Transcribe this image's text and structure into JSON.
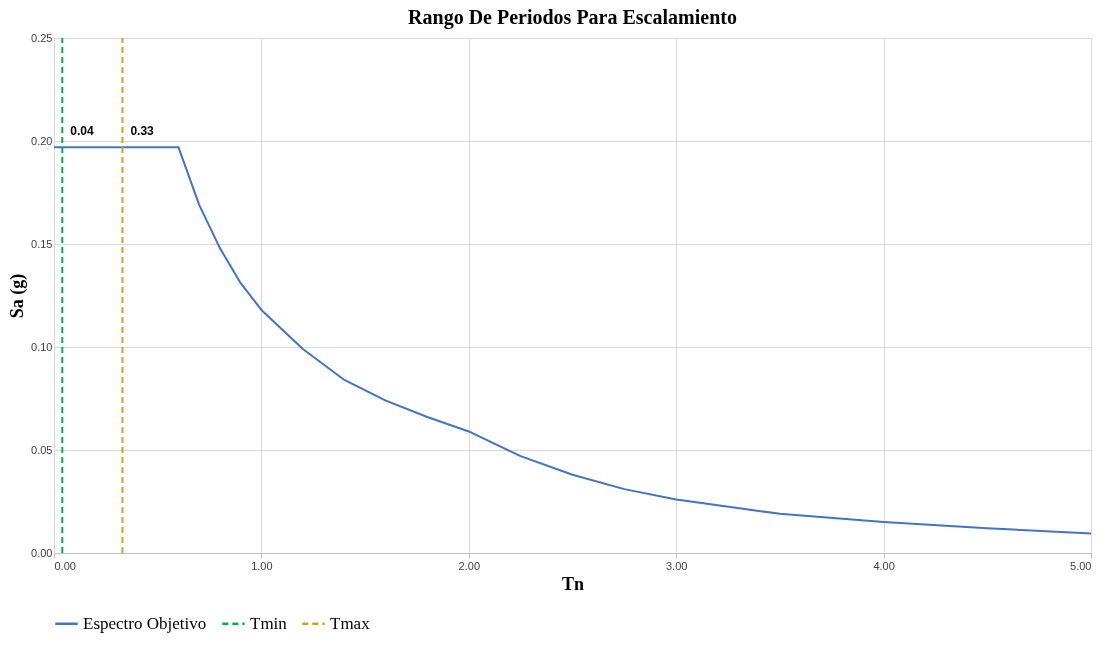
{
  "chart_data": {
    "type": "line",
    "title": "Rango De Periodos Para Escalamiento",
    "xlabel": "Tn",
    "ylabel": "Sa (g)",
    "xlim": [
      0,
      5
    ],
    "ylim": [
      0,
      0.25
    ],
    "xticks": [
      {
        "value": 0,
        "label": "0.00"
      },
      {
        "value": 1,
        "label": "1.00"
      },
      {
        "value": 2,
        "label": "2.00"
      },
      {
        "value": 3,
        "label": "3.00"
      },
      {
        "value": 4,
        "label": "4.00"
      },
      {
        "value": 5,
        "label": "5.00"
      }
    ],
    "yticks": [
      {
        "value": 0,
        "label": "0.00"
      },
      {
        "value": 0.05,
        "label": "0.05"
      },
      {
        "value": 0.1,
        "label": "0.10"
      },
      {
        "value": 0.15,
        "label": "0.15"
      },
      {
        "value": 0.2,
        "label": "0.20"
      },
      {
        "value": 0.25,
        "label": "0.25"
      }
    ],
    "grid": true,
    "legend": "bottom",
    "marker": "none",
    "series": [
      {
        "name": "Espectro Objetivo",
        "color": "#4472c4",
        "line_style": "solid",
        "x": [
          0,
          0.6,
          0.7,
          0.8,
          0.9,
          1.0,
          1.2,
          1.4,
          1.6,
          1.8,
          2.0,
          2.25,
          2.5,
          2.75,
          3.0,
          3.5,
          4.0,
          4.5,
          5.0
        ],
        "values": [
          0.197,
          0.197,
          0.169,
          0.148,
          0.131,
          0.118,
          0.099,
          0.084,
          0.074,
          0.066,
          0.059,
          0.047,
          0.038,
          0.031,
          0.026,
          0.019,
          0.015,
          0.012,
          0.0095
        ]
      },
      {
        "name": "Tmin",
        "color": "#00b050",
        "line_style": "dashed",
        "x": [
          0.04,
          0.04
        ],
        "values": [
          0,
          0.25
        ]
      },
      {
        "name": "Tmax",
        "color": "#c9a227",
        "line_style": "dashed",
        "x": [
          0.33,
          0.33
        ],
        "values": [
          0,
          0.25
        ]
      }
    ],
    "annotations": [
      {
        "text": "0.04",
        "x": 0.04,
        "y": 0.205
      },
      {
        "text": "0.33",
        "x": 0.33,
        "y": 0.205
      }
    ]
  }
}
